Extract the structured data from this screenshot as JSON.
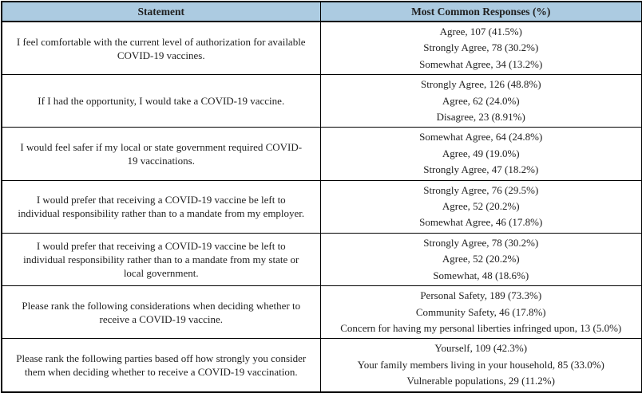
{
  "table": {
    "header": {
      "statement": "Statement",
      "responses": "Most Common Responses (%)"
    },
    "colors": {
      "header_bg": "#ACCBE1",
      "border": "#000000",
      "text": "#212121"
    },
    "rows": [
      {
        "statement": "I feel comfortable with the current level of authorization for available COVID-19 vaccines.",
        "responses": [
          "Agree, 107 (41.5%)",
          "Strongly Agree, 78 (30.2%)",
          "Somewhat Agree, 34 (13.2%)"
        ]
      },
      {
        "statement": "If I had the opportunity, I would take a COVID-19 vaccine.",
        "responses": [
          "Strongly Agree, 126 (48.8%)",
          "Agree, 62 (24.0%)",
          "Disagree, 23 (8.91%)"
        ]
      },
      {
        "statement": "I would feel safer if my local or state government required COVID-19 vaccinations.",
        "responses": [
          "Somewhat Agree, 64 (24.8%)",
          "Agree, 49 (19.0%)",
          "Strongly Agree, 47 (18.2%)"
        ]
      },
      {
        "statement": "I would prefer that receiving a COVID-19 vaccine be left to individual responsibility rather than to a mandate from my employer.",
        "responses": [
          "Strongly Agree, 76 (29.5%)",
          "Agree, 52 (20.2%)",
          "Somewhat Agree, 46 (17.8%)"
        ]
      },
      {
        "statement": "I would prefer that receiving a COVID-19 vaccine be left to individual responsibility rather than to a mandate from my state or local government.",
        "responses": [
          "Strongly Agree, 78 (30.2%)",
          "Agree, 52 (20.2%)",
          "Somewhat, 48 (18.6%)"
        ]
      },
      {
        "statement": "Please rank the following considerations when deciding whether to receive a COVID-19 vaccine.",
        "responses": [
          "Personal Safety, 189 (73.3%)",
          "Community Safety, 46 (17.8%)",
          "Concern for having my personal liberties infringed upon, 13 (5.0%)"
        ]
      },
      {
        "statement": "Please rank the following parties based off how strongly you consider them when deciding whether to receive a COVID-19 vaccination.",
        "responses": [
          "Yourself, 109 (42.3%)",
          "Your family members living in your household, 85 (33.0%)",
          "Vulnerable populations, 29 (11.2%)"
        ]
      }
    ]
  }
}
